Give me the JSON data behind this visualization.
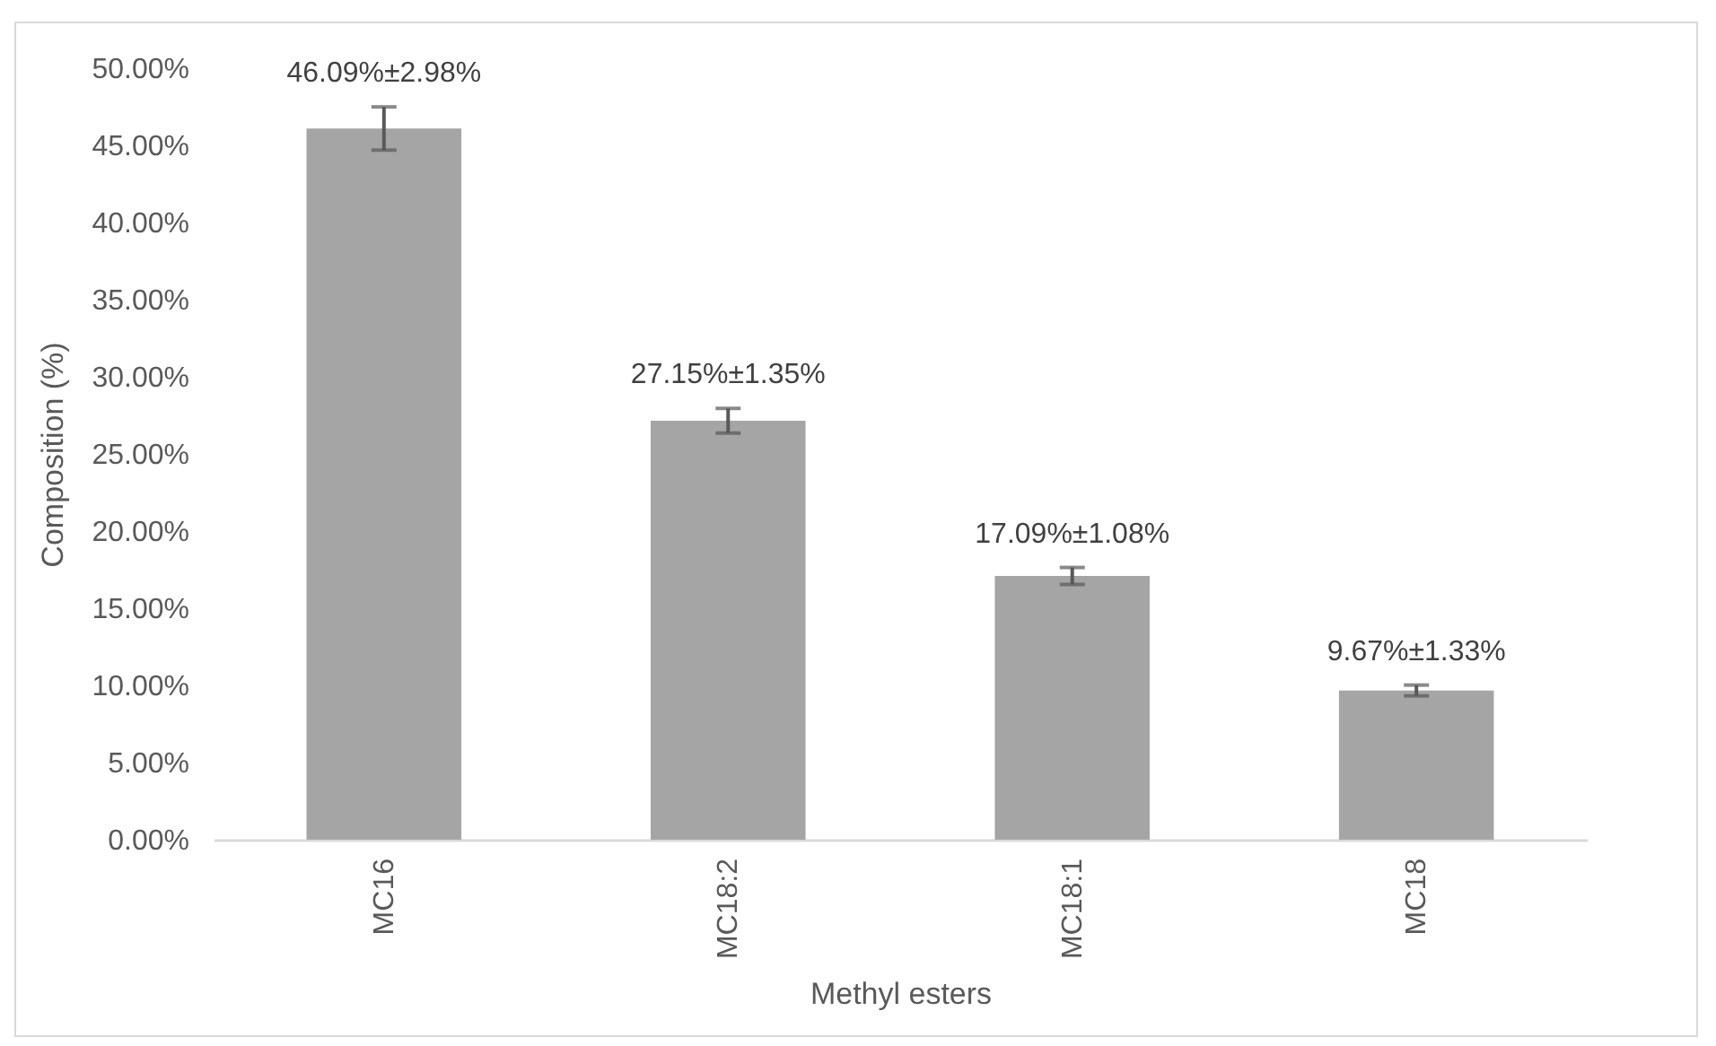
{
  "chart_data": {
    "type": "bar",
    "xlabel": "Methyl esters",
    "ylabel": "Composition (%)",
    "categories": [
      "MC16",
      "MC18:2",
      "MC18:1",
      "MC18"
    ],
    "values": [
      46.09,
      27.15,
      17.09,
      9.67
    ],
    "errors": [
      1.4,
      0.8,
      0.55,
      0.35
    ],
    "value_labels": [
      "46.09%±2.98%",
      "27.15%±1.35%",
      "17.09%±1.08%",
      "9.67%±1.33%"
    ],
    "color": "#a5a5a5",
    "ylim": [
      0,
      50
    ],
    "yticks": [
      {
        "value": 0,
        "label": "0.00%"
      },
      {
        "value": 5,
        "label": "5.00%"
      },
      {
        "value": 10,
        "label": "10.00%"
      },
      {
        "value": 15,
        "label": "15.00%"
      },
      {
        "value": 20,
        "label": "20.00%"
      },
      {
        "value": 25,
        "label": "25.00%"
      },
      {
        "value": 30,
        "label": "30.00%"
      },
      {
        "value": 35,
        "label": "35.00%"
      },
      {
        "value": 40,
        "label": "40.00%"
      },
      {
        "value": 45,
        "label": "45.00%"
      },
      {
        "value": 50,
        "label": "50.00%"
      }
    ],
    "grid": false
  }
}
